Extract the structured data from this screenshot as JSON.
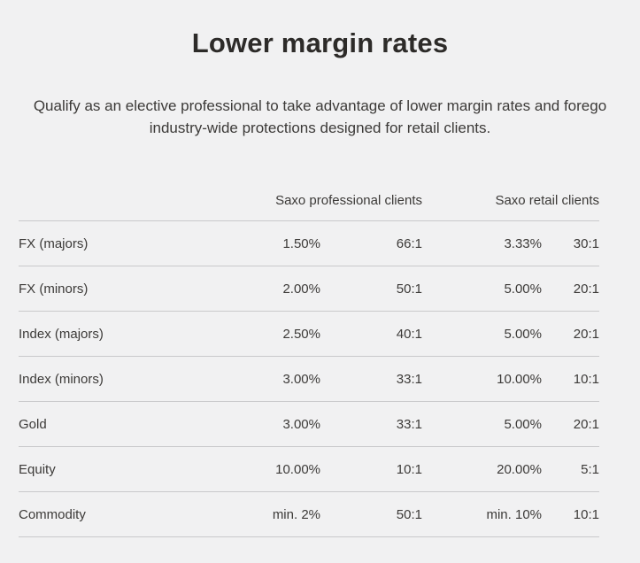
{
  "header": {
    "title": "Lower margin rates",
    "subtitle": "Qualify as an elective professional to take advantage of lower margin rates and forego industry-wide protections designed for retail clients."
  },
  "table": {
    "column_groups": [
      "Saxo professional clients",
      "Saxo retail clients"
    ],
    "rows": [
      {
        "label": "FX (majors)",
        "pro_margin": "1.50%",
        "pro_leverage": "66:1",
        "retail_margin": "3.33%",
        "retail_leverage": "30:1"
      },
      {
        "label": "FX (minors)",
        "pro_margin": "2.00%",
        "pro_leverage": "50:1",
        "retail_margin": "5.00%",
        "retail_leverage": "20:1"
      },
      {
        "label": "Index (majors)",
        "pro_margin": "2.50%",
        "pro_leverage": "40:1",
        "retail_margin": "5.00%",
        "retail_leverage": "20:1"
      },
      {
        "label": "Index (minors)",
        "pro_margin": "3.00%",
        "pro_leverage": "33:1",
        "retail_margin": "10.00%",
        "retail_leverage": "10:1"
      },
      {
        "label": "Gold",
        "pro_margin": "3.00%",
        "pro_leverage": "33:1",
        "retail_margin": "5.00%",
        "retail_leverage": "20:1"
      },
      {
        "label": "Equity",
        "pro_margin": "10.00%",
        "pro_leverage": "10:1",
        "retail_margin": "20.00%",
        "retail_leverage": "5:1"
      },
      {
        "label": "Commodity",
        "pro_margin": "min. 2%",
        "pro_leverage": "50:1",
        "retail_margin": "min. 10%",
        "retail_leverage": "10:1"
      }
    ]
  },
  "colors": {
    "background": "#f1f1f2",
    "title_text": "#2d2b29",
    "body_text": "#3c3a38",
    "divider": "#c9c9cb"
  }
}
